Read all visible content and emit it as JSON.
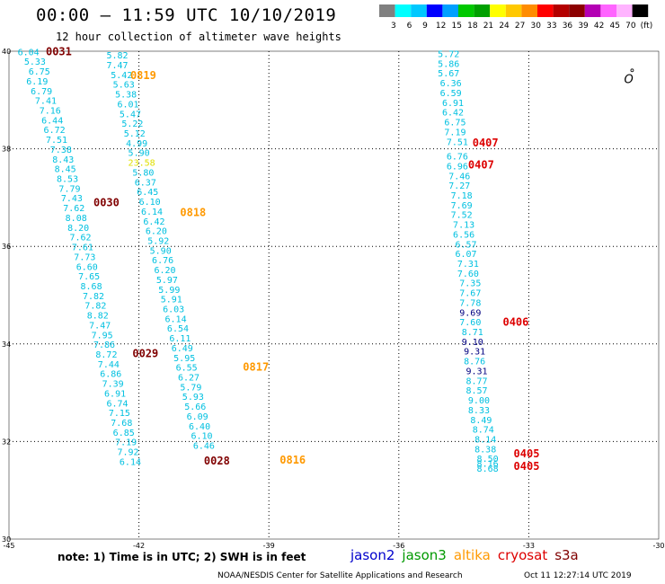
{
  "header": {
    "title": "00:00 – 11:59 UTC 10/10/2019",
    "subtitle": "12 hour collection of altimeter wave heights"
  },
  "legend": {
    "colors": [
      "#808080",
      "#00ffff",
      "#00c8ff",
      "#0000ff",
      "#00a0ff",
      "#00c800",
      "#00a000",
      "#ffff00",
      "#ffc800",
      "#ff8c00",
      "#ff0000",
      "#b40000",
      "#8c0000",
      "#b400b4",
      "#ff64ff",
      "#ffb4ff",
      "#000000"
    ],
    "labels": [
      "3",
      "6",
      "9",
      "12",
      "15",
      "18",
      "21",
      "24",
      "27",
      "30",
      "33",
      "36",
      "39",
      "42",
      "45",
      "70",
      "(ft)"
    ]
  },
  "map_data": {
    "lon_range": [
      -45,
      -30
    ],
    "lat_range": [
      30,
      40
    ],
    "x_ticks": [
      "-45",
      "-42",
      "-39",
      "-36",
      "-33",
      "-30"
    ],
    "y_ticks": [
      "40",
      "38",
      "36",
      "34",
      "32",
      "30"
    ],
    "grid_lons": [
      -42,
      -39,
      -36,
      -33
    ],
    "grid_lats": [
      38,
      36,
      34,
      32
    ],
    "island_symbol": "O",
    "island": {
      "lon": -30.8,
      "lat": 39.35
    },
    "colors": {
      "cyan": "#00c0e0",
      "navy": "#000080",
      "yellow": "#e0e000",
      "track_cyan": "#00b4dc"
    },
    "tracks": [
      {
        "name": "track-west-1",
        "points": [
          {
            "lon": -44.8,
            "lat": 39.92,
            "v": "6.04",
            "c": "cyan"
          },
          {
            "lon": -44.65,
            "lat": 39.72,
            "v": "5.33",
            "c": "cyan"
          },
          {
            "lon": -44.55,
            "lat": 39.52,
            "v": "6.75",
            "c": "cyan"
          },
          {
            "lon": -44.6,
            "lat": 39.32,
            "v": "6.19",
            "c": "cyan"
          },
          {
            "lon": -44.5,
            "lat": 39.12,
            "v": "6.79",
            "c": "cyan"
          },
          {
            "lon": -44.4,
            "lat": 38.92,
            "v": "7.41",
            "c": "cyan"
          },
          {
            "lon": -44.3,
            "lat": 38.72,
            "v": "7.16",
            "c": "cyan"
          },
          {
            "lon": -44.25,
            "lat": 38.52,
            "v": "6.44",
            "c": "cyan"
          },
          {
            "lon": -44.2,
            "lat": 38.32,
            "v": "6.72",
            "c": "cyan"
          },
          {
            "lon": -44.15,
            "lat": 38.12,
            "v": "7.51",
            "c": "cyan"
          },
          {
            "lon": -44.05,
            "lat": 37.92,
            "v": "7.38",
            "c": "cyan"
          },
          {
            "lon": -44.0,
            "lat": 37.72,
            "v": "8.43",
            "c": "cyan"
          },
          {
            "lon": -43.95,
            "lat": 37.52,
            "v": "8.45",
            "c": "cyan"
          },
          {
            "lon": -43.9,
            "lat": 37.32,
            "v": "8.53",
            "c": "cyan"
          },
          {
            "lon": -43.85,
            "lat": 37.12,
            "v": "7.79",
            "c": "cyan"
          },
          {
            "lon": -43.8,
            "lat": 36.92,
            "v": "7.43",
            "c": "cyan"
          },
          {
            "lon": -43.75,
            "lat": 36.72,
            "v": "7.62",
            "c": "cyan"
          },
          {
            "lon": -43.7,
            "lat": 36.52,
            "v": "8.08",
            "c": "cyan"
          },
          {
            "lon": -43.65,
            "lat": 36.32,
            "v": "8.20",
            "c": "cyan"
          },
          {
            "lon": -43.6,
            "lat": 36.12,
            "v": "7.62",
            "c": "cyan"
          },
          {
            "lon": -43.55,
            "lat": 35.92,
            "v": "7.61",
            "c": "cyan"
          },
          {
            "lon": -43.5,
            "lat": 35.72,
            "v": "7.73",
            "c": "cyan"
          },
          {
            "lon": -43.45,
            "lat": 35.52,
            "v": "6.60",
            "c": "cyan"
          },
          {
            "lon": -43.4,
            "lat": 35.32,
            "v": "7.65",
            "c": "cyan"
          },
          {
            "lon": -43.35,
            "lat": 35.12,
            "v": "8.68",
            "c": "cyan"
          },
          {
            "lon": -43.3,
            "lat": 34.92,
            "v": "7.82",
            "c": "cyan"
          },
          {
            "lon": -43.25,
            "lat": 34.72,
            "v": "7.82",
            "c": "cyan"
          },
          {
            "lon": -43.2,
            "lat": 34.52,
            "v": "8.82",
            "c": "cyan"
          },
          {
            "lon": -43.15,
            "lat": 34.32,
            "v": "7.47",
            "c": "cyan"
          },
          {
            "lon": -43.1,
            "lat": 34.12,
            "v": "7.95",
            "c": "cyan"
          },
          {
            "lon": -43.05,
            "lat": 33.92,
            "v": "7.86",
            "c": "cyan"
          },
          {
            "lon": -43.0,
            "lat": 33.72,
            "v": "8.72",
            "c": "cyan"
          },
          {
            "lon": -42.95,
            "lat": 33.52,
            "v": "7.44",
            "c": "cyan"
          },
          {
            "lon": -42.9,
            "lat": 33.32,
            "v": "6.86",
            "c": "cyan"
          },
          {
            "lon": -42.85,
            "lat": 33.12,
            "v": "7.39",
            "c": "cyan"
          },
          {
            "lon": -42.8,
            "lat": 32.92,
            "v": "6.91",
            "c": "cyan"
          },
          {
            "lon": -42.75,
            "lat": 32.72,
            "v": "6.74",
            "c": "cyan"
          },
          {
            "lon": -42.7,
            "lat": 32.52,
            "v": "7.15",
            "c": "cyan"
          },
          {
            "lon": -42.65,
            "lat": 32.32,
            "v": "7.68",
            "c": "cyan"
          },
          {
            "lon": -42.6,
            "lat": 32.12,
            "v": "6.85",
            "c": "cyan"
          },
          {
            "lon": -42.55,
            "lat": 31.92,
            "v": "7.19",
            "c": "cyan"
          },
          {
            "lon": -42.5,
            "lat": 31.72,
            "v": "7.92",
            "c": "cyan"
          },
          {
            "lon": -42.45,
            "lat": 31.52,
            "v": "6.14",
            "c": "cyan"
          }
        ]
      },
      {
        "name": "track-west-2",
        "points": [
          {
            "lon": -42.75,
            "lat": 39.85,
            "v": "5.82",
            "c": "cyan"
          },
          {
            "lon": -42.75,
            "lat": 39.65,
            "v": "7.47",
            "c": "cyan"
          },
          {
            "lon": -42.65,
            "lat": 39.45,
            "v": "5.42",
            "c": "cyan"
          },
          {
            "lon": -42.6,
            "lat": 39.25,
            "v": "5.63",
            "c": "cyan"
          },
          {
            "lon": -42.55,
            "lat": 39.05,
            "v": "5.38",
            "c": "cyan"
          },
          {
            "lon": -42.5,
            "lat": 38.85,
            "v": "6.01",
            "c": "cyan"
          },
          {
            "lon": -42.45,
            "lat": 38.65,
            "v": "5.47",
            "c": "cyan"
          },
          {
            "lon": -42.4,
            "lat": 38.45,
            "v": "5.22",
            "c": "cyan"
          },
          {
            "lon": -42.35,
            "lat": 38.25,
            "v": "5.12",
            "c": "cyan"
          },
          {
            "lon": -42.3,
            "lat": 38.05,
            "v": "4.99",
            "c": "cyan"
          },
          {
            "lon": -42.25,
            "lat": 37.85,
            "v": "5.90",
            "c": "cyan"
          },
          {
            "lon": -42.25,
            "lat": 37.65,
            "v": "23.58",
            "c": "yellow"
          },
          {
            "lon": -42.15,
            "lat": 37.45,
            "v": "5.80",
            "c": "cyan"
          },
          {
            "lon": -42.1,
            "lat": 37.25,
            "v": "6.37",
            "c": "cyan"
          },
          {
            "lon": -42.05,
            "lat": 37.05,
            "v": "6.45",
            "c": "cyan"
          },
          {
            "lon": -42.0,
            "lat": 36.85,
            "v": "6.10",
            "c": "cyan"
          },
          {
            "lon": -41.95,
            "lat": 36.65,
            "v": "6.14",
            "c": "cyan"
          },
          {
            "lon": -41.9,
            "lat": 36.45,
            "v": "6.42",
            "c": "cyan"
          },
          {
            "lon": -41.85,
            "lat": 36.25,
            "v": "6.20",
            "c": "cyan"
          },
          {
            "lon": -41.8,
            "lat": 36.05,
            "v": "5.92",
            "c": "cyan"
          },
          {
            "lon": -41.75,
            "lat": 35.85,
            "v": "5.90",
            "c": "cyan"
          },
          {
            "lon": -41.7,
            "lat": 35.65,
            "v": "6.76",
            "c": "cyan"
          },
          {
            "lon": -41.65,
            "lat": 35.45,
            "v": "6.20",
            "c": "cyan"
          },
          {
            "lon": -41.6,
            "lat": 35.25,
            "v": "5.97",
            "c": "cyan"
          },
          {
            "lon": -41.55,
            "lat": 35.05,
            "v": "5.99",
            "c": "cyan"
          },
          {
            "lon": -41.5,
            "lat": 34.85,
            "v": "5.91",
            "c": "cyan"
          },
          {
            "lon": -41.45,
            "lat": 34.65,
            "v": "6.03",
            "c": "cyan"
          },
          {
            "lon": -41.4,
            "lat": 34.45,
            "v": "6.14",
            "c": "cyan"
          },
          {
            "lon": -41.35,
            "lat": 34.25,
            "v": "6.54",
            "c": "cyan"
          },
          {
            "lon": -41.3,
            "lat": 34.05,
            "v": "6.11",
            "c": "cyan"
          },
          {
            "lon": -41.25,
            "lat": 33.85,
            "v": "6.49",
            "c": "cyan"
          },
          {
            "lon": -41.2,
            "lat": 33.65,
            "v": "5.95",
            "c": "cyan"
          },
          {
            "lon": -41.15,
            "lat": 33.45,
            "v": "6.55",
            "c": "cyan"
          },
          {
            "lon": -41.1,
            "lat": 33.25,
            "v": "6.27",
            "c": "cyan"
          },
          {
            "lon": -41.05,
            "lat": 33.05,
            "v": "5.79",
            "c": "cyan"
          },
          {
            "lon": -41.0,
            "lat": 32.85,
            "v": "5.93",
            "c": "cyan"
          },
          {
            "lon": -40.95,
            "lat": 32.65,
            "v": "5.66",
            "c": "cyan"
          },
          {
            "lon": -40.9,
            "lat": 32.45,
            "v": "6.09",
            "c": "cyan"
          },
          {
            "lon": -40.85,
            "lat": 32.25,
            "v": "6.40",
            "c": "cyan"
          },
          {
            "lon": -40.8,
            "lat": 32.05,
            "v": "6.10",
            "c": "cyan"
          },
          {
            "lon": -40.75,
            "lat": 31.85,
            "v": "6.46",
            "c": "cyan"
          }
        ]
      },
      {
        "name": "track-east",
        "points": [
          {
            "lon": -35.1,
            "lat": 39.88,
            "v": "5.72",
            "c": "cyan"
          },
          {
            "lon": -35.1,
            "lat": 39.68,
            "v": "5.86",
            "c": "cyan"
          },
          {
            "lon": -35.1,
            "lat": 39.48,
            "v": "5.67",
            "c": "cyan"
          },
          {
            "lon": -35.05,
            "lat": 39.28,
            "v": "6.36",
            "c": "cyan"
          },
          {
            "lon": -35.05,
            "lat": 39.08,
            "v": "6.59",
            "c": "cyan"
          },
          {
            "lon": -35.0,
            "lat": 38.88,
            "v": "6.91",
            "c": "cyan"
          },
          {
            "lon": -35.0,
            "lat": 38.68,
            "v": "6.42",
            "c": "cyan"
          },
          {
            "lon": -34.95,
            "lat": 38.48,
            "v": "6.75",
            "c": "cyan"
          },
          {
            "lon": -34.95,
            "lat": 38.28,
            "v": "7.19",
            "c": "cyan"
          },
          {
            "lon": -34.9,
            "lat": 38.08,
            "v": "7.51",
            "c": "cyan"
          },
          {
            "lon": -34.9,
            "lat": 37.78,
            "v": "6.76",
            "c": "cyan"
          },
          {
            "lon": -34.9,
            "lat": 37.58,
            "v": "6.96",
            "c": "cyan"
          },
          {
            "lon": -34.85,
            "lat": 37.38,
            "v": "7.46",
            "c": "cyan"
          },
          {
            "lon": -34.85,
            "lat": 37.18,
            "v": "7.27",
            "c": "cyan"
          },
          {
            "lon": -34.8,
            "lat": 36.98,
            "v": "7.18",
            "c": "cyan"
          },
          {
            "lon": -34.8,
            "lat": 36.78,
            "v": "7.69",
            "c": "cyan"
          },
          {
            "lon": -34.8,
            "lat": 36.58,
            "v": "7.52",
            "c": "cyan"
          },
          {
            "lon": -34.75,
            "lat": 36.38,
            "v": "7.13",
            "c": "cyan"
          },
          {
            "lon": -34.75,
            "lat": 36.18,
            "v": "6.56",
            "c": "cyan"
          },
          {
            "lon": -34.7,
            "lat": 35.98,
            "v": "6.57",
            "c": "cyan"
          },
          {
            "lon": -34.7,
            "lat": 35.78,
            "v": "6.07",
            "c": "cyan"
          },
          {
            "lon": -34.65,
            "lat": 35.58,
            "v": "7.31",
            "c": "cyan"
          },
          {
            "lon": -34.65,
            "lat": 35.38,
            "v": "7.60",
            "c": "cyan"
          },
          {
            "lon": -34.6,
            "lat": 35.18,
            "v": "7.35",
            "c": "cyan"
          },
          {
            "lon": -34.6,
            "lat": 34.98,
            "v": "7.67",
            "c": "cyan"
          },
          {
            "lon": -34.6,
            "lat": 34.78,
            "v": "7.78",
            "c": "cyan"
          },
          {
            "lon": -34.6,
            "lat": 34.58,
            "v": "9.69",
            "c": "navy"
          },
          {
            "lon": -34.6,
            "lat": 34.38,
            "v": "7.60",
            "c": "cyan"
          },
          {
            "lon": -34.55,
            "lat": 34.18,
            "v": "8.71",
            "c": "cyan"
          },
          {
            "lon": -34.55,
            "lat": 33.98,
            "v": "9.10",
            "c": "navy"
          },
          {
            "lon": -34.5,
            "lat": 33.78,
            "v": "9.31",
            "c": "navy"
          },
          {
            "lon": -34.5,
            "lat": 33.58,
            "v": "8.76",
            "c": "cyan"
          },
          {
            "lon": -34.45,
            "lat": 33.38,
            "v": "9.31",
            "c": "navy"
          },
          {
            "lon": -34.45,
            "lat": 33.18,
            "v": "8.77",
            "c": "cyan"
          },
          {
            "lon": -34.45,
            "lat": 32.98,
            "v": "8.57",
            "c": "cyan"
          },
          {
            "lon": -34.4,
            "lat": 32.78,
            "v": "9.00",
            "c": "cyan"
          },
          {
            "lon": -34.4,
            "lat": 32.58,
            "v": "8.33",
            "c": "cyan"
          },
          {
            "lon": -34.35,
            "lat": 32.38,
            "v": "8.49",
            "c": "cyan"
          },
          {
            "lon": -34.3,
            "lat": 32.18,
            "v": "8.74",
            "c": "cyan"
          },
          {
            "lon": -34.25,
            "lat": 31.98,
            "v": "8.14",
            "c": "cyan"
          },
          {
            "lon": -34.25,
            "lat": 31.78,
            "v": "8.38",
            "c": "cyan"
          },
          {
            "lon": -34.2,
            "lat": 31.58,
            "v": "8.50",
            "c": "cyan"
          },
          {
            "lon": -34.2,
            "lat": 31.48,
            "v": "8.16",
            "c": "cyan"
          },
          {
            "lon": -34.2,
            "lat": 31.38,
            "v": "8.68",
            "c": "cyan"
          }
        ]
      }
    ],
    "pass_labels": [
      {
        "lon": -44.15,
        "lat": 39.92,
        "text": "0031",
        "color": "#800000"
      },
      {
        "lon": -42.2,
        "lat": 39.43,
        "text": "0819",
        "color": "#ff9900"
      },
      {
        "lon": -43.05,
        "lat": 36.82,
        "text": "0030",
        "color": "#800000"
      },
      {
        "lon": -41.05,
        "lat": 36.62,
        "text": "0818",
        "color": "#ff9900"
      },
      {
        "lon": -42.15,
        "lat": 33.73,
        "text": "0029",
        "color": "#800000"
      },
      {
        "lon": -39.6,
        "lat": 33.45,
        "text": "0817",
        "color": "#ff9900"
      },
      {
        "lon": -40.5,
        "lat": 31.53,
        "text": "0028",
        "color": "#800000"
      },
      {
        "lon": -38.75,
        "lat": 31.55,
        "text": "0816",
        "color": "#ff9900"
      },
      {
        "lon": -34.3,
        "lat": 38.05,
        "text": "0407",
        "color": "#dd0000"
      },
      {
        "lon": -34.4,
        "lat": 37.6,
        "text": "0407",
        "color": "#dd0000"
      },
      {
        "lon": -33.6,
        "lat": 34.37,
        "text": "0406",
        "color": "#dd0000"
      },
      {
        "lon": -33.35,
        "lat": 31.68,
        "text": "0405",
        "color": "#dd0000"
      },
      {
        "lon": -33.35,
        "lat": 31.42,
        "text": "0405",
        "color": "#dd0000"
      }
    ]
  },
  "footer": {
    "note": "note: 1) Time is in UTC; 2) SWH is in feet",
    "satellites": [
      {
        "name": "jason2",
        "color": "#0000cc"
      },
      {
        "name": "jason3",
        "color": "#009900"
      },
      {
        "name": "altika",
        "color": "#ff9900"
      },
      {
        "name": "cryosat",
        "color": "#dd0000"
      },
      {
        "name": "s3a",
        "color": "#800000"
      }
    ],
    "credit": "NOAA/NESDIS Center for Satellite Applications and Research",
    "timestamp": "Oct 11 12:27:14 UTC 2019"
  }
}
